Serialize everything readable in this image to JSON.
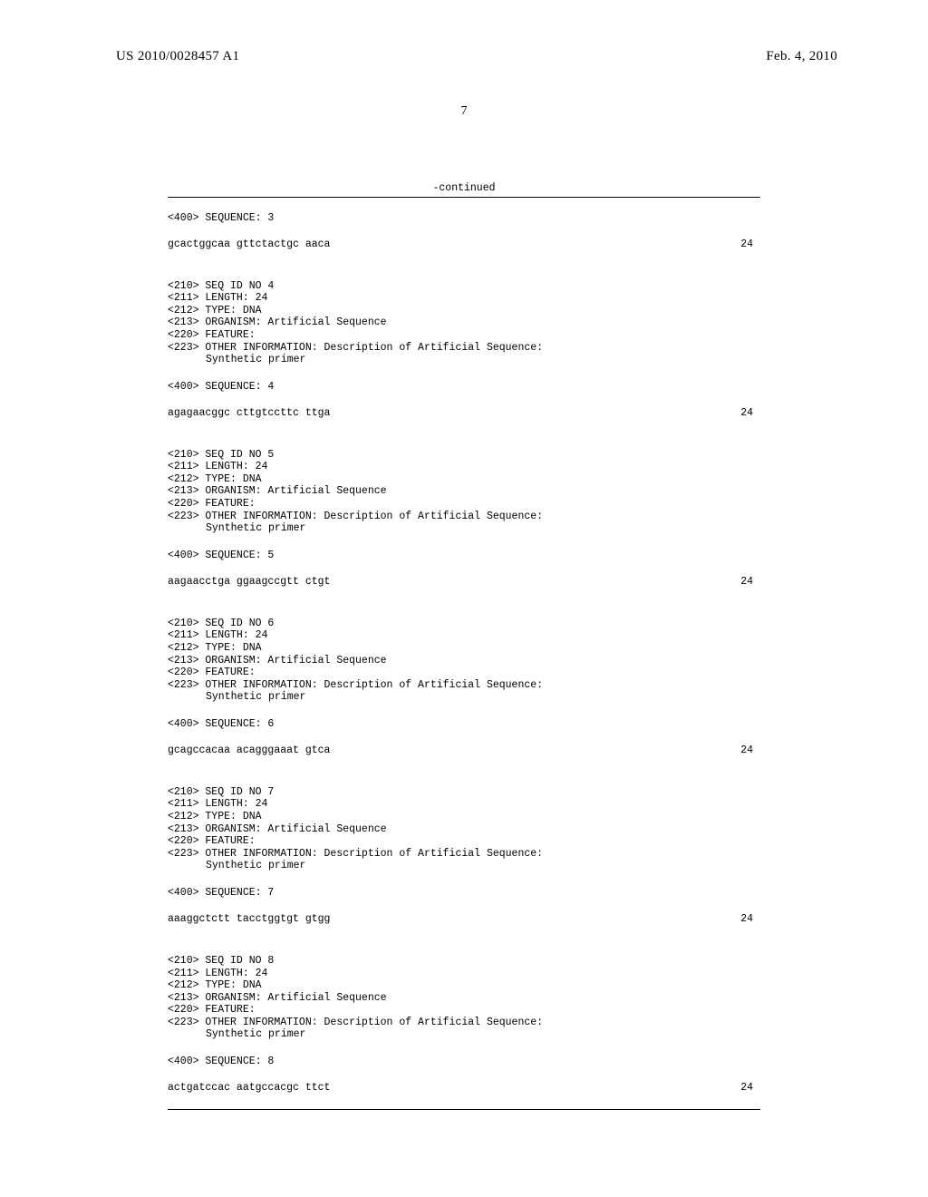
{
  "header": {
    "left": "US 2010/0028457 A1",
    "right": "Feb. 4, 2010"
  },
  "page_number": "7",
  "continued_label": "-continued",
  "sequences": [
    {
      "header": "<400> SEQUENCE: 3",
      "sequence": "gcactggcaa gttctactgc aaca",
      "length": "24"
    },
    {
      "meta": [
        "<210> SEQ ID NO 4",
        "<211> LENGTH: 24",
        "<212> TYPE: DNA",
        "<213> ORGANISM: Artificial Sequence",
        "<220> FEATURE:",
        "<223> OTHER INFORMATION: Description of Artificial Sequence:"
      ],
      "indented": "Synthetic primer",
      "header": "<400> SEQUENCE: 4",
      "sequence": "agagaacggc cttgtccttc ttga",
      "length": "24"
    },
    {
      "meta": [
        "<210> SEQ ID NO 5",
        "<211> LENGTH: 24",
        "<212> TYPE: DNA",
        "<213> ORGANISM: Artificial Sequence",
        "<220> FEATURE:",
        "<223> OTHER INFORMATION: Description of Artificial Sequence:"
      ],
      "indented": "Synthetic primer",
      "header": "<400> SEQUENCE: 5",
      "sequence": "aagaacctga ggaagccgtt ctgt",
      "length": "24"
    },
    {
      "meta": [
        "<210> SEQ ID NO 6",
        "<211> LENGTH: 24",
        "<212> TYPE: DNA",
        "<213> ORGANISM: Artificial Sequence",
        "<220> FEATURE:",
        "<223> OTHER INFORMATION: Description of Artificial Sequence:"
      ],
      "indented": "Synthetic primer",
      "header": "<400> SEQUENCE: 6",
      "sequence": "gcagccacaa acagggaaat gtca",
      "length": "24"
    },
    {
      "meta": [
        "<210> SEQ ID NO 7",
        "<211> LENGTH: 24",
        "<212> TYPE: DNA",
        "<213> ORGANISM: Artificial Sequence",
        "<220> FEATURE:",
        "<223> OTHER INFORMATION: Description of Artificial Sequence:"
      ],
      "indented": "Synthetic primer",
      "header": "<400> SEQUENCE: 7",
      "sequence": "aaaggctctt tacctggtgt gtgg",
      "length": "24"
    },
    {
      "meta": [
        "<210> SEQ ID NO 8",
        "<211> LENGTH: 24",
        "<212> TYPE: DNA",
        "<213> ORGANISM: Artificial Sequence",
        "<220> FEATURE:",
        "<223> OTHER INFORMATION: Description of Artificial Sequence:"
      ],
      "indented": "Synthetic primer",
      "header": "<400> SEQUENCE: 8",
      "sequence": "actgatccac aatgccacgc ttct",
      "length": "24"
    }
  ],
  "colors": {
    "background": "#ffffff",
    "text": "#000000",
    "line": "#000000"
  },
  "typography": {
    "header_font": "Times New Roman",
    "header_fontsize": 15,
    "body_font": "Courier New",
    "body_fontsize": 11.5
  }
}
